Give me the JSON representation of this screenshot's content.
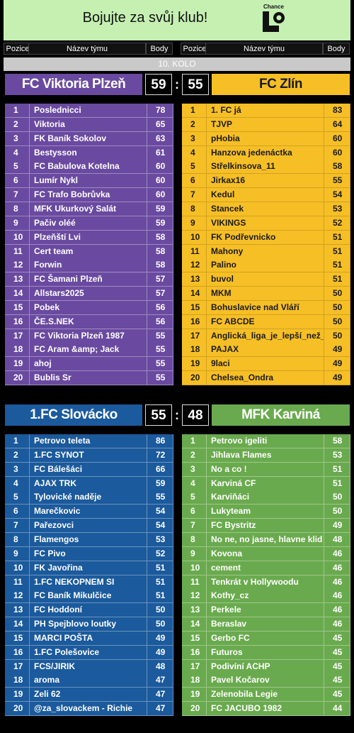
{
  "banner": {
    "title": "Bojujte za svůj klub!",
    "logo": "Chance"
  },
  "header": {
    "left": [
      "Pozice",
      "Název týmu",
      "Body"
    ],
    "right": [
      "Pozice",
      "Název týmu",
      "Body"
    ]
  },
  "round": "10. KOLO",
  "matches": [
    {
      "home": {
        "name": "FC Viktoria Plzeň",
        "score": 59,
        "rows": [
          [
            1,
            "Poslednicci",
            78
          ],
          [
            2,
            "Viktoria",
            65
          ],
          [
            3,
            "FK Baník Sokolov",
            63
          ],
          [
            4,
            "Bestysson",
            61
          ],
          [
            5,
            "FC Babulova Kotelna",
            60
          ],
          [
            6,
            "Lumír Nykl",
            60
          ],
          [
            7,
            "FC Trafo Bobrůvka",
            60
          ],
          [
            8,
            "MFK Ukurkový Salát",
            59
          ],
          [
            9,
            "Pačiv oléé",
            59
          ],
          [
            10,
            "Plzeňští Lvi",
            58
          ],
          [
            11,
            "Cert team",
            58
          ],
          [
            12,
            "Forwin",
            58
          ],
          [
            13,
            "FC Šamani Plzeň",
            57
          ],
          [
            14,
            "Allstars2025",
            57
          ],
          [
            15,
            "Pobek",
            56
          ],
          [
            16,
            "ČE.S.NEK",
            56
          ],
          [
            17,
            "FC Viktoria Plzeň 1987",
            55
          ],
          [
            18,
            "FC Aram &amp; Jack",
            55
          ],
          [
            19,
            "ahoj",
            55
          ],
          [
            20,
            "Bublis Sr",
            55
          ]
        ]
      },
      "away": {
        "name": "FC Zlín",
        "score": 55,
        "rows": [
          [
            1,
            "1. FC já",
            83
          ],
          [
            2,
            "TJVP",
            64
          ],
          [
            3,
            "pHobia",
            60
          ],
          [
            4,
            "Hanzova jedenáctka",
            60
          ],
          [
            5,
            "Střelkinsova_11",
            58
          ],
          [
            6,
            "Jirkax16",
            55
          ],
          [
            7,
            "Kedul",
            54
          ],
          [
            8,
            "Stancek",
            53
          ],
          [
            9,
            "VIKINGS",
            52
          ],
          [
            10,
            "FK Podřevnicko",
            51
          ],
          [
            11,
            "Mahony",
            51
          ],
          [
            12,
            "Palino",
            51
          ],
          [
            13,
            "buvol",
            51
          ],
          [
            14,
            "MKM",
            50
          ],
          [
            15,
            "Bohuslavice nad Vláří",
            50
          ],
          [
            16,
            "FC ABCDE",
            50
          ],
          [
            17,
            "Anglická_liga_je_lepší_než_česká",
            50
          ],
          [
            18,
            "PAJAX",
            49
          ],
          [
            19,
            "9laci",
            49
          ],
          [
            20,
            "Chelsea_Ondra",
            49
          ]
        ]
      }
    },
    {
      "home": {
        "name": "1.FC Slovácko",
        "score": 55,
        "rows": [
          [
            1,
            "Petrovo teleta",
            86
          ],
          [
            2,
            "1.FC SYNOT",
            72
          ],
          [
            3,
            "FC Bálešáci",
            66
          ],
          [
            4,
            "AJAX TRK",
            59
          ],
          [
            5,
            "Tylovické naděje",
            55
          ],
          [
            6,
            "Marečkovic",
            54
          ],
          [
            7,
            "Pařezovci",
            54
          ],
          [
            8,
            "Flamengos",
            53
          ],
          [
            9,
            "FC Pivo",
            52
          ],
          [
            10,
            "FK Javořina",
            51
          ],
          [
            11,
            "1.FC NEKOPNEM SI",
            51
          ],
          [
            12,
            "FC Baník Mikulčice",
            51
          ],
          [
            13,
            "FC Hoddoní",
            50
          ],
          [
            14,
            "PH Spejblovo loutky",
            50
          ],
          [
            15,
            "MARCI POŠTA",
            49
          ],
          [
            16,
            "1.FC Polešovice",
            49
          ],
          [
            17,
            "FCS/JIRIK",
            48
          ],
          [
            18,
            "aroma",
            47
          ],
          [
            19,
            "Zeli 62",
            47
          ],
          [
            20,
            "@za_slovackem - Richie",
            47
          ]
        ]
      },
      "away": {
        "name": "MFK Karviná",
        "score": 48,
        "rows": [
          [
            1,
            "Petrovo igeliti",
            58
          ],
          [
            2,
            "Jihlava Flames",
            53
          ],
          [
            3,
            "No a co !",
            51
          ],
          [
            4,
            "Karviná CF",
            51
          ],
          [
            5,
            "Karviňáci",
            50
          ],
          [
            6,
            "Lukyteam",
            50
          ],
          [
            7,
            "FC Bystritz",
            49
          ],
          [
            8,
            "No ne, no jasne, hlavne klid",
            48
          ],
          [
            9,
            "Kovona",
            46
          ],
          [
            10,
            "cement",
            46
          ],
          [
            11,
            "Tenkrát v Hollywoodu",
            46
          ],
          [
            12,
            "Kothy_cz",
            46
          ],
          [
            13,
            "Perkele",
            46
          ],
          [
            14,
            "Beraslav",
            46
          ],
          [
            15,
            "Gerbo FC",
            45
          ],
          [
            16,
            "Futuros",
            45
          ],
          [
            17,
            "Podivíní ACHP",
            45
          ],
          [
            18,
            "Pavel Kočarov",
            45
          ],
          [
            19,
            "Zelenobila Legie",
            45
          ],
          [
            20,
            "FC JACUBO 1982",
            44
          ]
        ]
      }
    }
  ]
}
